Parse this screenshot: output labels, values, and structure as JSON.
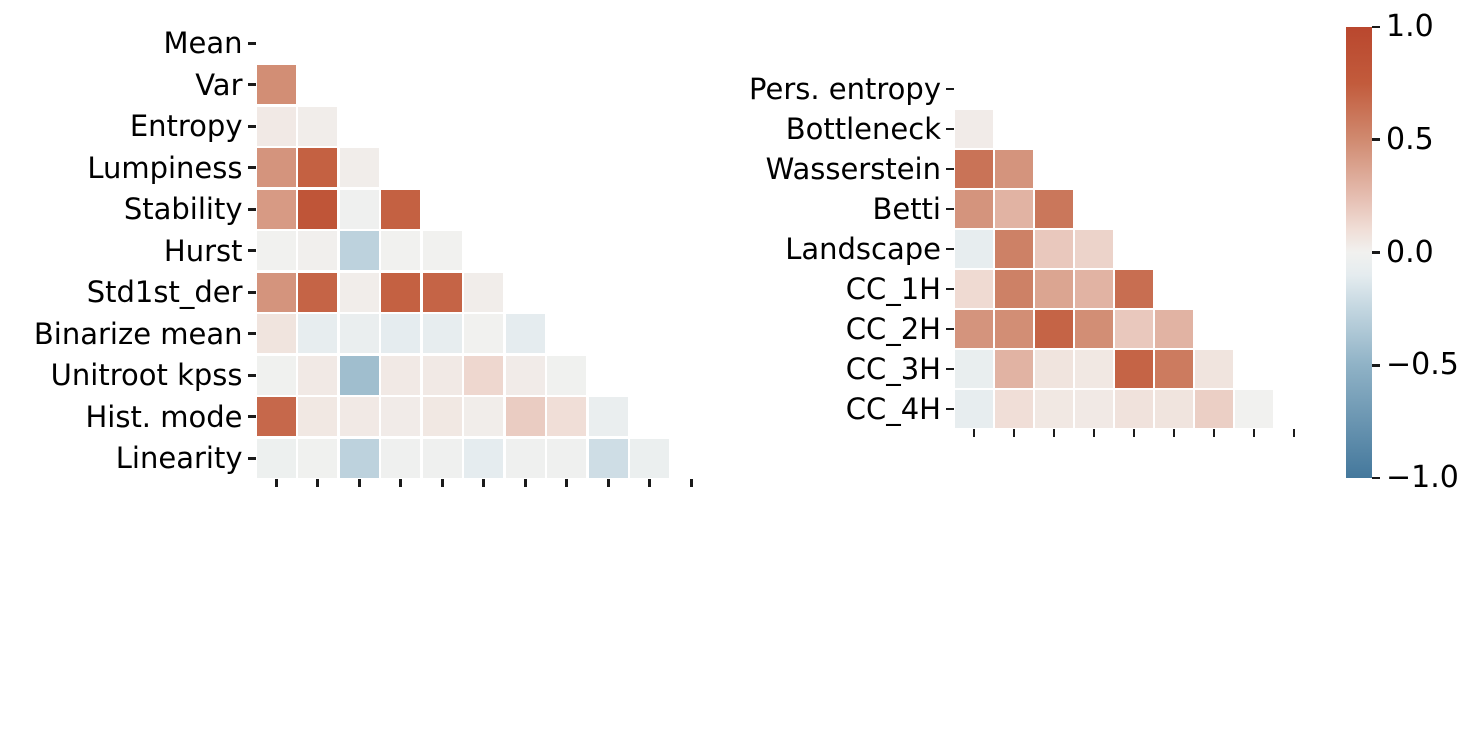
{
  "figure": {
    "background": "#ffffff",
    "text_color": "#000000"
  },
  "colormap_stops": [
    {
      "v": -1.0,
      "color": "#44789c"
    },
    {
      "v": -0.75,
      "color": "#6a95b1"
    },
    {
      "v": -0.5,
      "color": "#8fb2c6"
    },
    {
      "v": -0.25,
      "color": "#c3d6e0"
    },
    {
      "v": -0.1,
      "color": "#e5ecef"
    },
    {
      "v": 0.0,
      "color": "#f1f1ef"
    },
    {
      "v": 0.1,
      "color": "#f0ded7"
    },
    {
      "v": 0.25,
      "color": "#e5bdb0"
    },
    {
      "v": 0.5,
      "color": "#d08a70"
    },
    {
      "v": 0.75,
      "color": "#c25b3c"
    },
    {
      "v": 1.0,
      "color": "#b9472e"
    }
  ],
  "colorbar": {
    "vmin": -1,
    "vmax": 1,
    "tick_values": [
      1.0,
      0.5,
      0.0,
      -0.5,
      -1.0
    ],
    "tick_labels": [
      "1.0",
      "0.5",
      "0.0",
      "−0.5",
      "−1.0"
    ]
  },
  "chart_data": [
    {
      "type": "heatmap",
      "name": "statistical-features-correlation",
      "title": "",
      "triangle": "lower_excluding_diagonal",
      "vmin": -1,
      "vmax": 1,
      "labels": [
        "Mean",
        "Var",
        "Entropy",
        "Lumpiness",
        "Stability",
        "Hurst",
        "Std1st_der",
        "Binarize mean",
        "Unitroot kpss",
        "Hist. mode",
        "Linearity"
      ],
      "matrix_lower": [
        [],
        [
          0.48
        ],
        [
          0.04,
          0.02
        ],
        [
          0.45,
          0.72,
          0.02
        ],
        [
          0.42,
          0.82,
          -0.02,
          0.72
        ],
        [
          0.0,
          0.01,
          -0.28,
          0.0,
          0.0
        ],
        [
          0.45,
          0.7,
          0.02,
          0.72,
          0.7,
          0.02
        ],
        [
          0.07,
          -0.08,
          -0.06,
          -0.1,
          -0.08,
          0.0,
          -0.1
        ],
        [
          -0.01,
          0.04,
          -0.42,
          0.04,
          0.04,
          0.13,
          0.03,
          -0.01
        ],
        [
          0.68,
          0.05,
          0.04,
          0.03,
          0.05,
          0.02,
          0.18,
          0.1,
          -0.06
        ],
        [
          -0.03,
          -0.01,
          -0.28,
          -0.02,
          -0.02,
          -0.1,
          -0.02,
          -0.02,
          -0.2,
          -0.05
        ]
      ]
    },
    {
      "type": "heatmap",
      "name": "topological-features-correlation",
      "title": "",
      "triangle": "lower_excluding_diagonal",
      "vmin": -1,
      "vmax": 1,
      "labels": [
        "Pers. entropy",
        "Bottleneck",
        "Wasserstein",
        "Betti",
        "Landscape",
        "CC_1H",
        "CC_2H",
        "CC_3H",
        "CC_4H"
      ],
      "matrix_lower": [
        [],
        [
          0.03
        ],
        [
          0.62,
          0.45
        ],
        [
          0.45,
          0.3,
          0.6
        ],
        [
          -0.08,
          0.55,
          0.2,
          0.15
        ],
        [
          0.12,
          0.55,
          0.37,
          0.3,
          0.65
        ],
        [
          0.45,
          0.48,
          0.7,
          0.48,
          0.2,
          0.3
        ],
        [
          -0.07,
          0.3,
          0.07,
          0.05,
          0.7,
          0.58,
          0.07
        ],
        [
          -0.08,
          0.1,
          0.05,
          0.04,
          0.08,
          0.07,
          0.17,
          0.0
        ]
      ]
    }
  ]
}
